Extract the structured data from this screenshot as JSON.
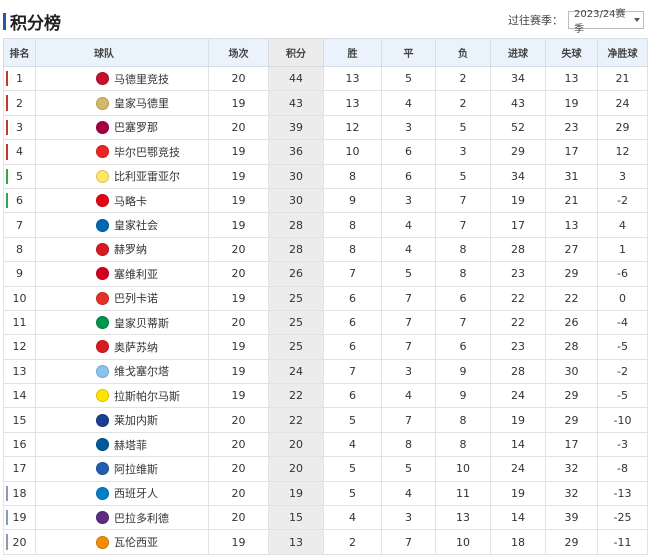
{
  "page": {
    "title": "积分榜"
  },
  "season": {
    "label": "过往赛季：",
    "value": "2023/24赛季"
  },
  "headers": [
    "排名",
    "球队",
    "场次",
    "积分",
    "胜",
    "平",
    "负",
    "进球",
    "失球",
    "净胜球"
  ],
  "colors": {
    "ucl": "#c0392b",
    "uel": "#2da84a",
    "relegation": "#8a99b5",
    "header_bg": "#eaf2fb",
    "points_bg": "#ececec"
  },
  "rows": [
    {
      "rank": "1",
      "team": "马德里竞技",
      "played": "20",
      "points": "44",
      "w": "13",
      "d": "5",
      "l": "2",
      "gf": "34",
      "ga": "13",
      "gd": "21",
      "zone": "ucl",
      "logo": "#c8102e"
    },
    {
      "rank": "2",
      "team": "皇家马德里",
      "played": "19",
      "points": "43",
      "w": "13",
      "d": "4",
      "l": "2",
      "gf": "43",
      "ga": "19",
      "gd": "24",
      "zone": "ucl",
      "logo": "#d4b86a"
    },
    {
      "rank": "3",
      "team": "巴塞罗那",
      "played": "20",
      "points": "39",
      "w": "12",
      "d": "3",
      "l": "5",
      "gf": "52",
      "ga": "23",
      "gd": "29",
      "zone": "ucl",
      "logo": "#a50044"
    },
    {
      "rank": "4",
      "team": "毕尔巴鄂竞技",
      "played": "19",
      "points": "36",
      "w": "10",
      "d": "6",
      "l": "3",
      "gf": "29",
      "ga": "17",
      "gd": "12",
      "zone": "ucl",
      "logo": "#ee2523"
    },
    {
      "rank": "5",
      "team": "比利亚雷亚尔",
      "played": "19",
      "points": "30",
      "w": "8",
      "d": "6",
      "l": "5",
      "gf": "34",
      "ga": "31",
      "gd": "3",
      "zone": "uel",
      "logo": "#ffe667"
    },
    {
      "rank": "6",
      "team": "马略卡",
      "played": "19",
      "points": "30",
      "w": "9",
      "d": "3",
      "l": "7",
      "gf": "19",
      "ga": "21",
      "gd": "-2",
      "zone": "uel",
      "logo": "#e20613"
    },
    {
      "rank": "7",
      "team": "皇家社会",
      "played": "19",
      "points": "28",
      "w": "8",
      "d": "4",
      "l": "7",
      "gf": "17",
      "ga": "13",
      "gd": "4",
      "zone": "",
      "logo": "#0067b1"
    },
    {
      "rank": "8",
      "team": "赫罗纳",
      "played": "20",
      "points": "28",
      "w": "8",
      "d": "4",
      "l": "8",
      "gf": "28",
      "ga": "27",
      "gd": "1",
      "zone": "",
      "logo": "#d71920"
    },
    {
      "rank": "9",
      "team": "塞维利亚",
      "played": "20",
      "points": "26",
      "w": "7",
      "d": "5",
      "l": "8",
      "gf": "23",
      "ga": "29",
      "gd": "-6",
      "zone": "",
      "logo": "#d4001f"
    },
    {
      "rank": "10",
      "team": "巴列卡诺",
      "played": "19",
      "points": "25",
      "w": "6",
      "d": "7",
      "l": "6",
      "gf": "22",
      "ga": "22",
      "gd": "0",
      "zone": "",
      "logo": "#e53027"
    },
    {
      "rank": "11",
      "team": "皇家贝蒂斯",
      "played": "20",
      "points": "25",
      "w": "6",
      "d": "7",
      "l": "7",
      "gf": "22",
      "ga": "26",
      "gd": "-4",
      "zone": "",
      "logo": "#00954c"
    },
    {
      "rank": "12",
      "team": "奥萨苏纳",
      "played": "19",
      "points": "25",
      "w": "6",
      "d": "7",
      "l": "6",
      "gf": "23",
      "ga": "28",
      "gd": "-5",
      "zone": "",
      "logo": "#d91a21"
    },
    {
      "rank": "13",
      "team": "维戈塞尔塔",
      "played": "19",
      "points": "24",
      "w": "7",
      "d": "3",
      "l": "9",
      "gf": "28",
      "ga": "30",
      "gd": "-2",
      "zone": "",
      "logo": "#8ac3ee"
    },
    {
      "rank": "14",
      "team": "拉斯帕尔马斯",
      "played": "19",
      "points": "22",
      "w": "6",
      "d": "4",
      "l": "9",
      "gf": "24",
      "ga": "29",
      "gd": "-5",
      "zone": "",
      "logo": "#ffe400"
    },
    {
      "rank": "15",
      "team": "莱加内斯",
      "played": "20",
      "points": "22",
      "w": "5",
      "d": "7",
      "l": "8",
      "gf": "19",
      "ga": "29",
      "gd": "-10",
      "zone": "",
      "logo": "#1b3f8f"
    },
    {
      "rank": "16",
      "team": "赫塔菲",
      "played": "20",
      "points": "20",
      "w": "4",
      "d": "8",
      "l": "8",
      "gf": "14",
      "ga": "17",
      "gd": "-3",
      "zone": "",
      "logo": "#005999"
    },
    {
      "rank": "17",
      "team": "阿拉维斯",
      "played": "20",
      "points": "20",
      "w": "5",
      "d": "5",
      "l": "10",
      "gf": "24",
      "ga": "32",
      "gd": "-8",
      "zone": "",
      "logo": "#1f5fae"
    },
    {
      "rank": "18",
      "team": "西班牙人",
      "played": "20",
      "points": "19",
      "w": "5",
      "d": "4",
      "l": "11",
      "gf": "19",
      "ga": "32",
      "gd": "-13",
      "zone": "rel",
      "logo": "#007fc8"
    },
    {
      "rank": "19",
      "team": "巴拉多利德",
      "played": "20",
      "points": "15",
      "w": "4",
      "d": "3",
      "l": "13",
      "gf": "14",
      "ga": "39",
      "gd": "-25",
      "zone": "rel",
      "logo": "#5f2a81"
    },
    {
      "rank": "20",
      "team": "瓦伦西亚",
      "played": "19",
      "points": "13",
      "w": "2",
      "d": "7",
      "l": "10",
      "gf": "18",
      "ga": "29",
      "gd": "-11",
      "zone": "rel",
      "logo": "#f18e00"
    }
  ]
}
